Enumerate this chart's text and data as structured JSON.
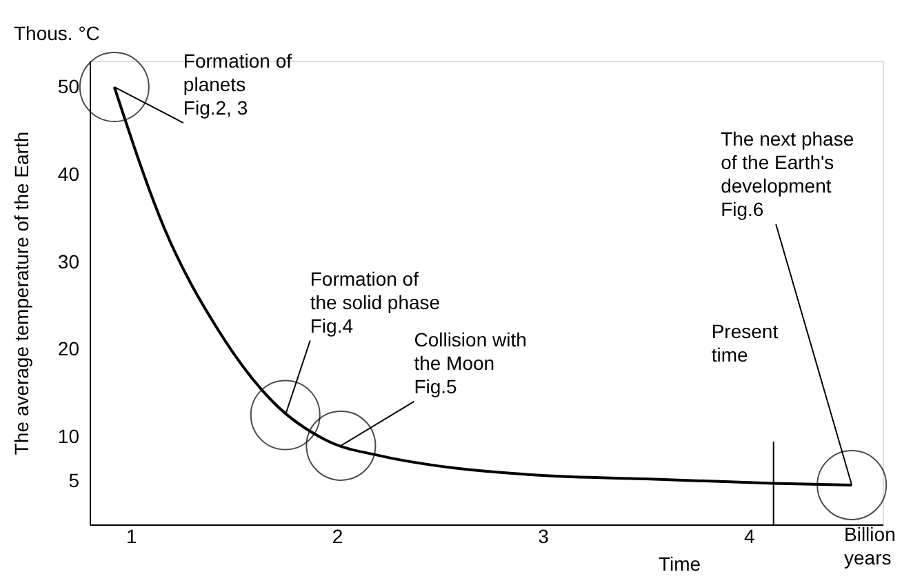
{
  "chart_data": {
    "type": "line",
    "xlabel": "Time",
    "ylabel": "The average temperature of the Earth",
    "x": [
      0.92,
      1.16,
      1.43,
      1.69,
      1.95,
      2.22,
      2.55,
      3.0,
      3.5,
      4.12,
      4.5
    ],
    "series": [
      {
        "color": "#000000",
        "values": [
          50,
          34,
          22,
          14,
          9.6,
          7.8,
          6.5,
          5.6,
          5.2,
          4.7,
          4.5
        ]
      }
    ],
    "xlim": [
      0.8,
      4.65
    ],
    "ylim": [
      0,
      53
    ],
    "xticks": [
      1,
      2,
      3,
      4
    ],
    "yticks": [
      5,
      10,
      20,
      30,
      40,
      50
    ],
    "grid": false,
    "marker": "none",
    "line_style": "solid",
    "ref_lines": [
      {
        "axis": "x",
        "value": 4.12,
        "label": "Present time"
      }
    ],
    "annotations": [
      {
        "text": "Formation of\nplanets\n Fig.2, 3",
        "x": 0.92,
        "y": 50
      },
      {
        "text": "Formation of\nthe solid phase\nFig.4",
        "x": 1.75,
        "y": 12.5
      },
      {
        "text": "Collision with\nthe Moon\nFig.5",
        "x": 2.02,
        "y": 9
      },
      {
        "text": "The next phase\nof the Earth's\ndevelopment\nFig.6",
        "x": 4.5,
        "y": 4.5
      },
      "Thous. °C",
      "Billion years"
    ]
  }
}
